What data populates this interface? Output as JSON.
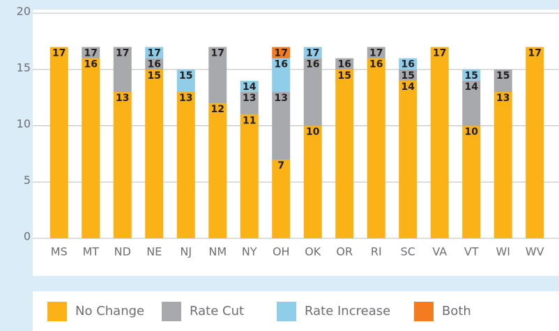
{
  "chart_data": {
    "type": "stacked_bar",
    "categories": [
      "MS",
      "MT",
      "ND",
      "NE",
      "NJ",
      "NM",
      "NY",
      "OH",
      "OK",
      "OR",
      "RI",
      "SC",
      "VA",
      "VT",
      "WI",
      "WV"
    ],
    "series": [
      {
        "name": "No Change",
        "color": "#fbb217",
        "values": [
          17,
          16,
          13,
          15,
          13,
          12,
          11,
          7,
          10,
          15,
          16,
          14,
          17,
          10,
          13,
          17
        ],
        "value_labels": [
          "17",
          "16",
          "13",
          "15",
          "13",
          "12",
          "11",
          "7",
          "10",
          "15",
          "16",
          "14",
          "17",
          "10",
          "13",
          "17"
        ]
      },
      {
        "name": "Rate Cut",
        "color": "#a7a9ac",
        "values": [
          null,
          1,
          4,
          1,
          null,
          5,
          2,
          6,
          6,
          1,
          1,
          1,
          null,
          4,
          2,
          null
        ],
        "value_labels": [
          null,
          "17",
          "17",
          "16",
          null,
          "17",
          "13",
          "13",
          "16",
          "16",
          "17",
          "15",
          null,
          "14",
          "15",
          null
        ]
      },
      {
        "name": "Rate Increase",
        "color": "#8fcde9",
        "values": [
          null,
          null,
          null,
          1,
          2,
          null,
          1,
          3,
          1,
          null,
          null,
          1,
          null,
          1,
          null,
          null
        ],
        "value_labels": [
          null,
          null,
          null,
          "17",
          "15",
          null,
          "14",
          "16",
          "17",
          null,
          null,
          "16",
          null,
          "15",
          null,
          null
        ]
      },
      {
        "name": "Both",
        "color": "#f47c20",
        "values": [
          null,
          null,
          null,
          null,
          null,
          null,
          null,
          1,
          null,
          null,
          null,
          null,
          null,
          null,
          null,
          null
        ],
        "value_labels": [
          null,
          null,
          null,
          null,
          null,
          null,
          null,
          "17",
          null,
          null,
          null,
          null,
          null,
          null,
          null,
          null
        ]
      }
    ],
    "ylim": [
      0,
      20
    ],
    "yticks": [
      0,
      5,
      10,
      15,
      20
    ],
    "grid": true,
    "legend": "bottom"
  }
}
